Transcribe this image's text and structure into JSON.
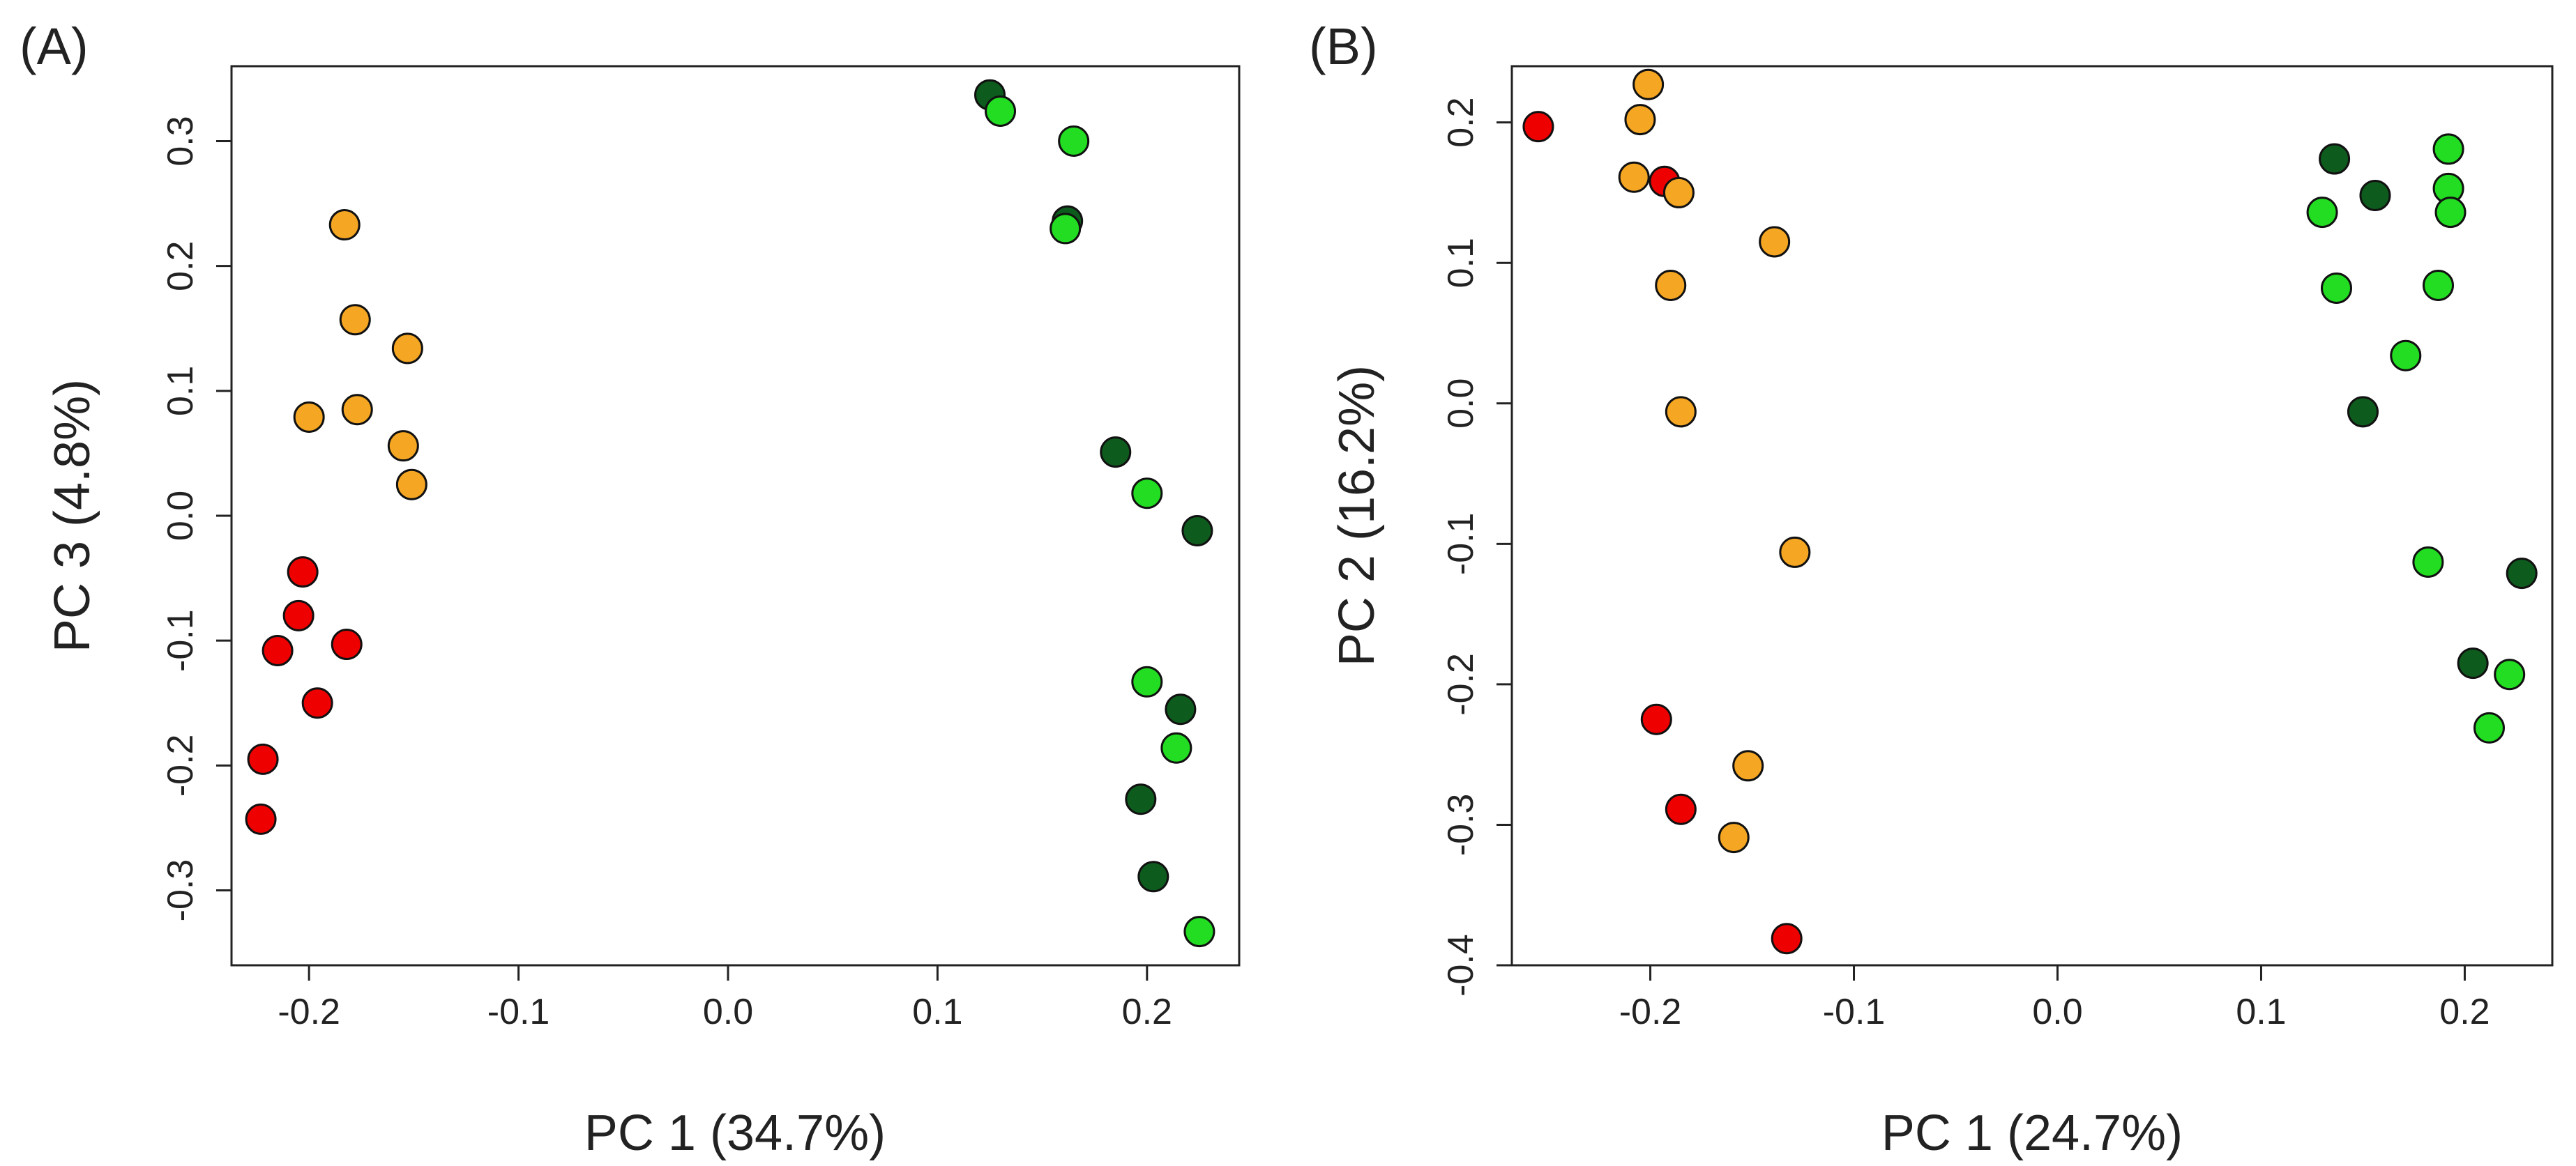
{
  "colors": {
    "red": "#ee0000",
    "orange": "#f5a623",
    "dark_green": "#0d5c1d",
    "light_green": "#22dd22"
  },
  "chart_data": [
    {
      "type": "scatter",
      "panel_label": "(A)",
      "xlabel": "PC 1 (34.7%)",
      "ylabel": "PC 3 (4.8%)",
      "xlim": [
        -0.237,
        0.244
      ],
      "ylim": [
        -0.36,
        0.36
      ],
      "xticks": [
        -0.2,
        -0.1,
        0.0,
        0.1,
        0.2
      ],
      "xtick_labels": [
        "-0.2",
        "-0.1",
        "0.0",
        "0.1",
        "0.2"
      ],
      "yticks": [
        -0.3,
        -0.2,
        -0.1,
        0.0,
        0.1,
        0.2,
        0.3
      ],
      "ytick_labels": [
        "-0.3",
        "-0.2",
        "-0.1",
        "0.0",
        "0.1",
        "0.2",
        "0.3"
      ],
      "grid": false,
      "series": [
        {
          "name": "red",
          "color_key": "red",
          "points": [
            [
              -0.203,
              -0.045
            ],
            [
              -0.205,
              -0.08
            ],
            [
              -0.215,
              -0.108
            ],
            [
              -0.182,
              -0.103
            ],
            [
              -0.196,
              -0.15
            ],
            [
              -0.222,
              -0.195
            ],
            [
              -0.223,
              -0.243
            ]
          ]
        },
        {
          "name": "orange",
          "color_key": "orange",
          "points": [
            [
              -0.183,
              0.233
            ],
            [
              -0.178,
              0.157
            ],
            [
              -0.153,
              0.134
            ],
            [
              -0.2,
              0.079
            ],
            [
              -0.177,
              0.085
            ],
            [
              -0.155,
              0.056
            ],
            [
              -0.151,
              0.025
            ]
          ]
        },
        {
          "name": "dark green",
          "color_key": "dark_green",
          "points": [
            [
              0.125,
              0.337
            ],
            [
              0.162,
              0.236
            ],
            [
              0.185,
              0.051
            ],
            [
              0.224,
              -0.012
            ],
            [
              0.216,
              -0.155
            ],
            [
              0.197,
              -0.227
            ],
            [
              0.203,
              -0.289
            ]
          ]
        },
        {
          "name": "light green",
          "color_key": "light_green",
          "points": [
            [
              0.13,
              0.324
            ],
            [
              0.165,
              0.3
            ],
            [
              0.161,
              0.23
            ],
            [
              0.2,
              0.018
            ],
            [
              0.2,
              -0.133
            ],
            [
              0.214,
              -0.186
            ],
            [
              0.225,
              -0.333
            ]
          ]
        }
      ]
    },
    {
      "type": "scatter",
      "panel_label": "(B)",
      "xlabel": "PC 1 (24.7%)",
      "ylabel": "PC 2 (16.2%)",
      "xlim": [
        -0.268,
        0.243
      ],
      "ylim": [
        -0.4,
        0.24
      ],
      "xticks": [
        -0.2,
        -0.1,
        0.0,
        0.1,
        0.2
      ],
      "xtick_labels": [
        "-0.2",
        "-0.1",
        "0.0",
        "0.1",
        "0.2"
      ],
      "yticks": [
        -0.4,
        -0.3,
        -0.2,
        -0.1,
        0.0,
        0.1,
        0.2
      ],
      "ytick_labels": [
        "-0.4",
        "-0.3",
        "-0.2",
        "-0.1",
        "0.0",
        "0.1",
        "0.2"
      ],
      "grid": false,
      "series": [
        {
          "name": "red",
          "color_key": "red",
          "points": [
            [
              -0.255,
              0.197
            ],
            [
              -0.193,
              0.158
            ],
            [
              -0.197,
              -0.225
            ],
            [
              -0.185,
              -0.289
            ],
            [
              -0.133,
              -0.381
            ]
          ]
        },
        {
          "name": "orange",
          "color_key": "orange",
          "points": [
            [
              -0.201,
              0.227
            ],
            [
              -0.205,
              0.202
            ],
            [
              -0.208,
              0.161
            ],
            [
              -0.186,
              0.15
            ],
            [
              -0.139,
              0.115
            ],
            [
              -0.19,
              0.084
            ],
            [
              -0.185,
              -0.006
            ],
            [
              -0.129,
              -0.106
            ],
            [
              -0.152,
              -0.258
            ],
            [
              -0.159,
              -0.309
            ]
          ]
        },
        {
          "name": "dark green",
          "color_key": "dark_green",
          "points": [
            [
              0.136,
              0.174
            ],
            [
              0.156,
              0.148
            ],
            [
              0.15,
              -0.006
            ],
            [
              0.228,
              -0.121
            ],
            [
              0.204,
              -0.185
            ]
          ]
        },
        {
          "name": "light green",
          "color_key": "light_green",
          "points": [
            [
              0.192,
              0.181
            ],
            [
              0.192,
              0.153
            ],
            [
              0.193,
              0.136
            ],
            [
              0.13,
              0.136
            ],
            [
              0.137,
              0.082
            ],
            [
              0.187,
              0.084
            ],
            [
              0.171,
              0.034
            ],
            [
              0.182,
              -0.113
            ],
            [
              0.222,
              -0.193
            ],
            [
              0.212,
              -0.231
            ]
          ]
        }
      ]
    }
  ]
}
